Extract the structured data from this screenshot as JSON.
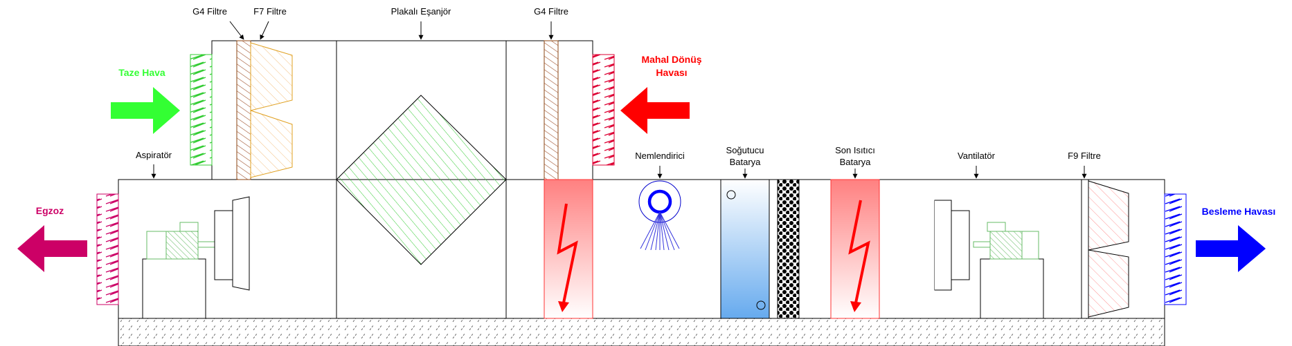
{
  "labels": {
    "g4_filter_top_left": "G4 Filtre",
    "f7_filter": "F7 Filtre",
    "plate_exchanger": "Plakalı Eşanjör",
    "g4_filter_top_right": "G4 Filtre",
    "fresh_air": "Taze Hava",
    "return_air_line1": "Mahal Dönüş",
    "return_air_line2": "Havası",
    "aspirator": "Aspiratör",
    "humidifier": "Nemlendirici",
    "cooler_line1": "Soğutucu",
    "cooler_line2": "Batarya",
    "reheater_line1": "Son Isıtıcı",
    "reheater_line2": "Batarya",
    "fan": "Vantilatör",
    "f9_filter": "F9 Filtre",
    "exhaust": "Egzoz",
    "supply_air": "Besleme Havası"
  },
  "colors": {
    "fresh_air": "#33ff33",
    "return_air": "#ff0000",
    "exhaust": "#cc0066",
    "supply_air": "#0000ff",
    "f7_filter": "#e0a020",
    "g4_filter": "#a0522d",
    "exchanger": "#33cc33",
    "motor": "#66bb66",
    "cooler_top": "#ffffff",
    "cooler_bottom": "#66aaee",
    "heater_top": "#ff8080"
  },
  "icons": {
    "fresh_air": "arrow-right-icon",
    "return_air": "arrow-left-icon",
    "exhaust": "arrow-left-icon",
    "supply_air": "arrow-right-icon",
    "heater": "lightning-icon",
    "humidifier": "spray-nozzle-icon"
  }
}
